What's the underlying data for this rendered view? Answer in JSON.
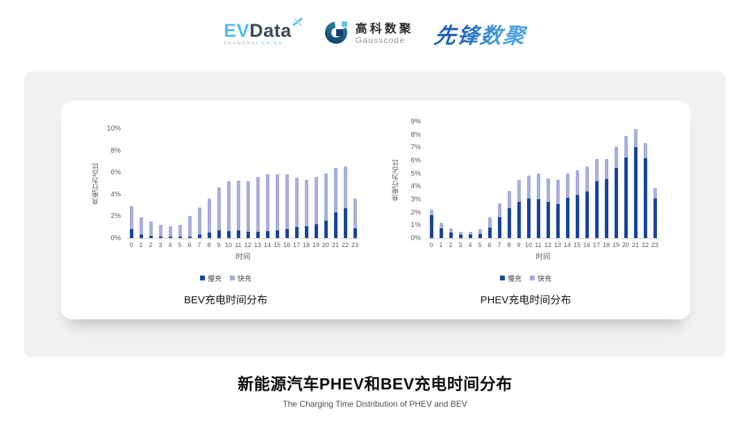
{
  "header": {
    "evdata_logo": {
      "ev": "EV",
      "data": "Data",
      "sub_left": "SHANGHAI",
      "sub_right": "CHINA"
    },
    "gausscode_logo": {
      "name_cn": "高科数聚",
      "name_en": "Gausscode"
    },
    "pioneer_logo": {
      "text": "先锋数聚"
    }
  },
  "footer": {
    "title": "新能源汽车PHEV和BEV充电时间分布",
    "subtitle": "The Charging Time Distribution of PHEV and BEV"
  },
  "colors": {
    "slow_charge": "#17449f",
    "fast_charge": "#a5aedd",
    "axis_text": "#595959",
    "panel_bg": "#f1f1f2"
  },
  "chart_data": [
    {
      "type": "bar",
      "stacked": true,
      "title": "BEV充电时间分布",
      "xlabel": "时间",
      "ylabel": "充电行为占比",
      "ylim": [
        0,
        10
      ],
      "yticks": [
        "0%",
        "2%",
        "4%",
        "6%",
        "8%",
        "10%"
      ],
      "grid": false,
      "legend_position": "bottom",
      "categories": [
        "0",
        "1",
        "2",
        "3",
        "4",
        "5",
        "6",
        "7",
        "8",
        "9",
        "10",
        "11",
        "12",
        "13",
        "14",
        "15",
        "16",
        "17",
        "18",
        "19",
        "20",
        "21",
        "22",
        "23"
      ],
      "series": [
        {
          "name": "慢充",
          "color": "#17449f",
          "values": [
            0.8,
            0.35,
            0.2,
            0.1,
            0.1,
            0.1,
            0.15,
            0.35,
            0.5,
            0.7,
            0.65,
            0.7,
            0.6,
            0.6,
            0.65,
            0.7,
            0.8,
            1.0,
            1.1,
            1.3,
            1.6,
            2.35,
            2.7,
            0.9
          ]
        },
        {
          "name": "快充",
          "color": "#a5aedd",
          "values": [
            2.1,
            1.55,
            1.3,
            1.1,
            1.0,
            1.1,
            1.85,
            2.45,
            3.1,
            3.95,
            4.55,
            4.55,
            4.6,
            5.0,
            5.15,
            5.1,
            5.05,
            4.5,
            4.2,
            4.3,
            4.3,
            4.05,
            3.85,
            2.7
          ]
        }
      ]
    },
    {
      "type": "bar",
      "stacked": true,
      "title": "PHEV充电时间分布",
      "xlabel": "时间",
      "ylabel": "充电行为占比",
      "ylim": [
        0,
        9
      ],
      "yticks": [
        "0%",
        "1%",
        "2%",
        "3%",
        "4%",
        "5%",
        "6%",
        "7%",
        "8%",
        "9%"
      ],
      "grid": false,
      "legend_position": "bottom",
      "categories": [
        "0",
        "1",
        "2",
        "3",
        "4",
        "5",
        "6",
        "7",
        "8",
        "9",
        "10",
        "11",
        "12",
        "13",
        "14",
        "15",
        "16",
        "17",
        "18",
        "19",
        "20",
        "21",
        "22",
        "23"
      ],
      "series": [
        {
          "name": "慢充",
          "color": "#17449f",
          "values": [
            1.75,
            0.75,
            0.45,
            0.25,
            0.25,
            0.3,
            0.8,
            1.6,
            2.3,
            2.8,
            3.05,
            3.0,
            2.8,
            2.65,
            3.1,
            3.3,
            3.6,
            4.4,
            4.55,
            5.4,
            6.2,
            7.0,
            6.15,
            3.05
          ]
        },
        {
          "name": "快充",
          "color": "#a5aedd",
          "values": [
            0.45,
            0.45,
            0.3,
            0.25,
            0.25,
            0.4,
            0.8,
            1.1,
            1.35,
            1.7,
            1.75,
            2.0,
            1.8,
            1.85,
            1.9,
            1.95,
            1.9,
            1.7,
            1.55,
            1.7,
            1.7,
            1.4,
            1.2,
            0.8
          ]
        }
      ]
    }
  ]
}
